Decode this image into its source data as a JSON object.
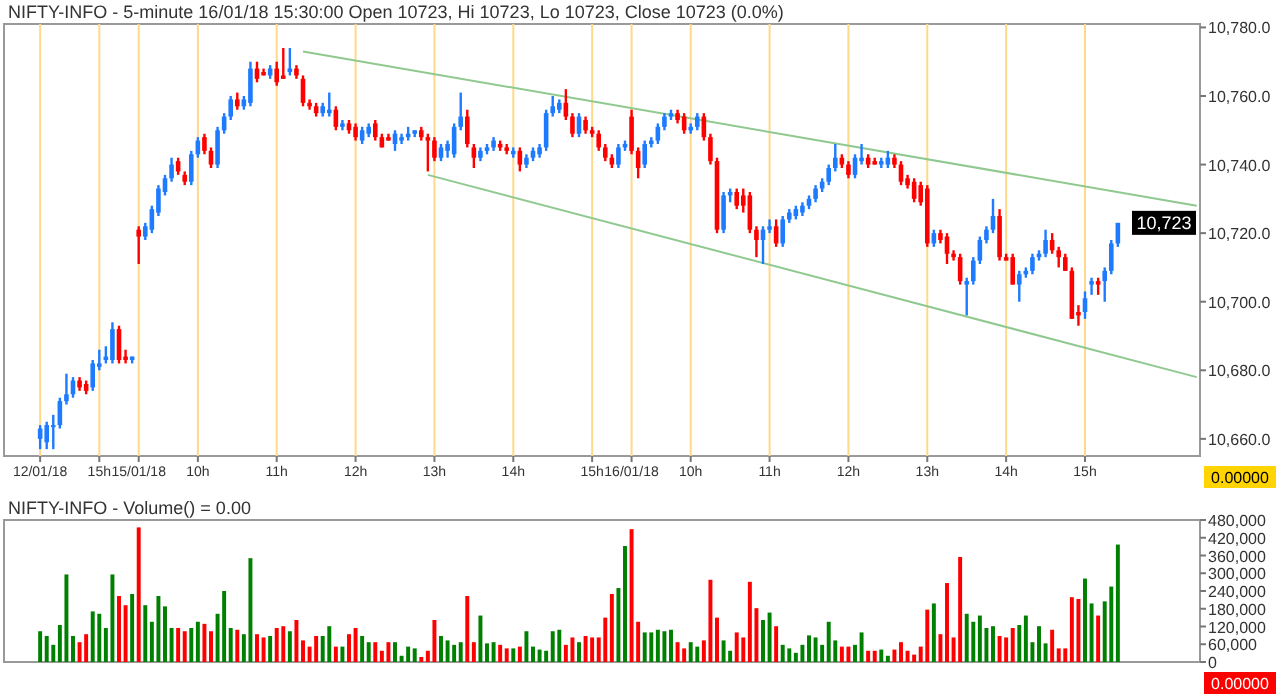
{
  "chart_data": [
    {
      "type": "candlestick",
      "title": "NIFTY-INFO - 5-minute 16/01/18 15:30:00 Open 10723, Hi 10723, Lo 10723, Close 10723 (0.0%)",
      "categories": [
        null,
        null,
        null,
        null,
        null,
        "12/01/18",
        null,
        null,
        null,
        null,
        null,
        null,
        null,
        null,
        "15h",
        null,
        null,
        null,
        null,
        null,
        "15/01/18",
        null,
        null,
        null,
        null,
        null,
        null,
        null,
        null,
        "10h",
        null,
        null,
        null,
        null,
        null,
        null,
        null,
        null,
        null,
        null,
        null,
        "11h",
        null,
        null,
        null,
        null,
        null,
        null,
        null,
        null,
        null,
        null,
        null,
        "12h",
        null,
        null,
        null,
        null,
        null,
        null,
        null,
        null,
        null,
        null,
        null,
        "13h",
        null,
        null,
        null,
        null,
        null,
        null,
        null,
        null,
        null,
        null,
        null,
        "14h",
        null,
        null,
        null,
        null,
        null,
        null,
        null,
        null,
        null,
        null,
        null,
        "15h",
        null,
        null,
        null,
        null,
        null,
        "16/01/18",
        null,
        null,
        null,
        null,
        null,
        null,
        null,
        null,
        "10h",
        null,
        null,
        null,
        null,
        null,
        null,
        null,
        null,
        null,
        null,
        null,
        "11h",
        null,
        null,
        null,
        null,
        null,
        null,
        null,
        null,
        null,
        null,
        null,
        "12h",
        null,
        null,
        null,
        null,
        null,
        null,
        null,
        null,
        null,
        null,
        null,
        "13h",
        null,
        null,
        null,
        null,
        null,
        null,
        null,
        null,
        null,
        null,
        null,
        "14h",
        null,
        null,
        null,
        null,
        null,
        null,
        null,
        null,
        null,
        null,
        null,
        "15h",
        null,
        null,
        null,
        null,
        null,
        null,
        null,
        null,
        null,
        null,
        null,
        null,
        null,
        null,
        null,
        null,
        null
      ],
      "ohlc": [
        null,
        null,
        null,
        null,
        null,
        [
          10660,
          10664,
          10657,
          10663
        ],
        [
          10659,
          10665,
          10657,
          10664
        ],
        [
          10664,
          10667,
          10657,
          10664
        ],
        [
          10664,
          10672,
          10663,
          10671
        ],
        [
          10671,
          10679,
          10670,
          10673
        ],
        [
          10673,
          10678,
          10672,
          10677
        ],
        [
          10677,
          10678,
          10674,
          10675
        ],
        [
          10676,
          10677,
          10673,
          10674
        ],
        [
          10675,
          10683,
          10674,
          10682
        ],
        [
          10681,
          10686,
          10680,
          10682
        ],
        [
          10683,
          10687,
          10682,
          10684
        ],
        [
          10683,
          10694,
          10682,
          10692
        ],
        [
          10692,
          10693,
          10682,
          10683
        ],
        [
          10684,
          10686,
          10682,
          10683
        ],
        [
          10683,
          10684,
          10682,
          10684
        ],
        [
          10721,
          10722,
          10711,
          10719
        ],
        [
          10719,
          10723,
          10718,
          10722
        ],
        [
          10721,
          10728,
          10720,
          10727
        ],
        [
          10726,
          10734,
          10725,
          10733
        ],
        [
          10732,
          10737,
          10731,
          10736
        ],
        [
          10736,
          10742,
          10735,
          10740
        ],
        [
          10741,
          10742,
          10737,
          10738
        ],
        [
          10737,
          10738,
          10734,
          10735
        ],
        [
          10735,
          10744,
          10734,
          10743
        ],
        [
          10743,
          10748,
          10742,
          10747
        ],
        [
          10748,
          10749,
          10743,
          10744
        ],
        [
          10744,
          10745,
          10739,
          10740
        ],
        [
          10740,
          10751,
          10739,
          10750
        ],
        [
          10750,
          10755,
          10749,
          10754
        ],
        [
          10754,
          10760,
          10753,
          10759
        ],
        [
          10759,
          10761,
          10756,
          10757
        ],
        [
          10757,
          10760,
          10756,
          10759
        ],
        [
          10758,
          10770,
          10757,
          10768
        ],
        [
          10768,
          10770,
          10764,
          10765
        ],
        [
          10767,
          10768,
          10766,
          10766
        ],
        [
          10766,
          10769,
          10765,
          10768
        ],
        [
          10768,
          10770,
          10763,
          10764
        ],
        [
          10766,
          10774,
          10765,
          10765
        ],
        [
          10767,
          10774,
          10766,
          10768
        ],
        [
          10768,
          10769,
          10765,
          10766
        ],
        [
          10765,
          10766,
          10757,
          10758
        ],
        [
          10758,
          10759,
          10756,
          10757
        ],
        [
          10757,
          10758,
          10754,
          10755
        ],
        [
          10755,
          10758,
          10754,
          10757
        ],
        [
          10755,
          10761,
          10754,
          10756
        ],
        [
          10756,
          10757,
          10750,
          10751
        ],
        [
          10751,
          10753,
          10750,
          10752
        ],
        [
          10752,
          10753,
          10749,
          10750
        ],
        [
          10751,
          10752,
          10747,
          10748
        ],
        [
          10747,
          10751,
          10746,
          10750
        ],
        [
          10749,
          10752,
          10748,
          10751
        ],
        [
          10752,
          10753,
          10747,
          10748
        ],
        [
          10748,
          10749,
          10745,
          10745
        ],
        [
          10748,
          10749,
          10747,
          10747
        ],
        [
          10746,
          10750,
          10744,
          10749
        ],
        [
          10747,
          10749,
          10746,
          10748
        ],
        [
          10748,
          10751,
          10747,
          10749
        ],
        [
          10749,
          10750,
          10748,
          10750
        ],
        [
          10750,
          10751,
          10747,
          10748
        ],
        [
          10748,
          10749,
          10738,
          10747
        ],
        [
          10747,
          10748,
          10741,
          10742
        ],
        [
          10742,
          10746,
          10741,
          10745
        ],
        [
          10744,
          10747,
          10742,
          10746
        ],
        [
          10743,
          10752,
          10742,
          10751
        ],
        [
          10751,
          10761,
          10750,
          10754
        ],
        [
          10754,
          10756,
          10745,
          10746
        ],
        [
          10745,
          10746,
          10739,
          10742
        ],
        [
          10742,
          10745,
          10741,
          10744
        ],
        [
          10744,
          10746,
          10743,
          10745
        ],
        [
          10745,
          10748,
          10744,
          10747
        ],
        [
          10746,
          10747,
          10744,
          10745
        ],
        [
          10745,
          10746,
          10743,
          10744
        ],
        [
          10743,
          10745,
          10742,
          10744
        ],
        [
          10744,
          10745,
          10738,
          10740
        ],
        [
          10740,
          10743,
          10739,
          10742
        ],
        [
          10742,
          10745,
          10741,
          10744
        ],
        [
          10743,
          10746,
          10742,
          10745
        ],
        [
          10745,
          10756,
          10744,
          10755
        ],
        [
          10755,
          10760,
          10754,
          10757
        ],
        [
          10756,
          10759,
          10755,
          10758
        ],
        [
          10758,
          10762,
          10753,
          10754
        ],
        [
          10754,
          10755,
          10748,
          10749
        ],
        [
          10749,
          10755,
          10748,
          10754
        ],
        [
          10753,
          10754,
          10749,
          10750
        ],
        [
          10750,
          10751,
          10748,
          10749
        ],
        [
          10749,
          10750,
          10744,
          10745
        ],
        [
          10745,
          10746,
          10741,
          10742
        ],
        [
          10742,
          10743,
          10739,
          10740
        ],
        [
          10740,
          10746,
          10739,
          10745
        ],
        [
          10745,
          10747,
          10744,
          10746
        ],
        [
          10754,
          10756,
          10743,
          10744
        ],
        [
          10744,
          10745,
          10736,
          10739
        ],
        [
          10740,
          10747,
          10739,
          10746
        ],
        [
          10746,
          10748,
          10745,
          10747
        ],
        [
          10747,
          10752,
          10746,
          10751
        ],
        [
          10751,
          10755,
          10750,
          10754
        ],
        [
          10754,
          10756,
          10753,
          10755
        ],
        [
          10755,
          10756,
          10752,
          10753
        ],
        [
          10754,
          10755,
          10749,
          10750
        ],
        [
          10750,
          10752,
          10749,
          10751
        ],
        [
          10751,
          10755,
          10750,
          10754
        ],
        [
          10754,
          10755,
          10747,
          10748
        ],
        [
          10748,
          10749,
          10740,
          10741
        ],
        [
          10741,
          10742,
          10720,
          10721
        ],
        [
          10721,
          10732,
          10720,
          10731
        ],
        [
          10731,
          10733,
          10729,
          10732
        ],
        [
          10732,
          10733,
          10727,
          10728
        ],
        [
          10731,
          10733,
          10726,
          10728
        ],
        [
          10731,
          10732,
          10720,
          10721
        ],
        [
          10721,
          10722,
          10713,
          10718
        ],
        [
          10718,
          10722,
          10711,
          10721
        ],
        [
          10721,
          10724,
          10720,
          10722
        ],
        [
          10722,
          10724,
          10716,
          10717
        ],
        [
          10717,
          10725,
          10716,
          10724
        ],
        [
          10724,
          10727,
          10723,
          10726
        ],
        [
          10725,
          10728,
          10724,
          10727
        ],
        [
          10726,
          10729,
          10725,
          10728
        ],
        [
          10728,
          10731,
          10727,
          10730
        ],
        [
          10730,
          10734,
          10729,
          10733
        ],
        [
          10733,
          10736,
          10732,
          10735
        ],
        [
          10735,
          10740,
          10734,
          10739
        ],
        [
          10739,
          10746,
          10738,
          10742
        ],
        [
          10742,
          10743,
          10739,
          10740
        ],
        [
          10740,
          10741,
          10736,
          10737
        ],
        [
          10737,
          10743,
          10736,
          10742
        ],
        [
          10741,
          10746,
          10740,
          10742
        ],
        [
          10742,
          10743,
          10739,
          10740
        ],
        [
          10741,
          10742,
          10740,
          10740
        ],
        [
          10740,
          10742,
          10739,
          10741
        ],
        [
          10740,
          10744,
          10739,
          10742
        ],
        [
          10742,
          10743,
          10739,
          10740
        ],
        [
          10740,
          10741,
          10734,
          10735
        ],
        [
          10736,
          10737,
          10733,
          10734
        ],
        [
          10735,
          10736,
          10729,
          10730
        ],
        [
          10734,
          10735,
          10728,
          10729
        ],
        [
          10733,
          10734,
          10716,
          10717
        ],
        [
          10717,
          10721,
          10716,
          10720
        ],
        [
          10720,
          10721,
          10717,
          10718
        ],
        [
          10719,
          10720,
          10711,
          10714
        ],
        [
          10714,
          10715,
          10712,
          10713
        ],
        [
          10713,
          10714,
          10705,
          10706
        ],
        [
          10705,
          10707,
          10696,
          10706
        ],
        [
          10706,
          10713,
          10705,
          10712
        ],
        [
          10712,
          10719,
          10711,
          10718
        ],
        [
          10718,
          10722,
          10717,
          10721
        ],
        [
          10721,
          10730,
          10720,
          10725
        ],
        [
          10725,
          10727,
          10712,
          10713
        ],
        [
          10713,
          10714,
          10712,
          10712
        ],
        [
          10713,
          10714,
          10705,
          10705
        ],
        [
          10705,
          10709,
          10700,
          10708
        ],
        [
          10708,
          10710,
          10707,
          10709
        ],
        [
          10709,
          10714,
          10708,
          10713
        ],
        [
          10713,
          10715,
          10712,
          10714
        ],
        [
          10714,
          10721,
          10713,
          10718
        ],
        [
          10718,
          10720,
          10714,
          10715
        ],
        [
          10715,
          10716,
          10710,
          10713
        ],
        [
          10713,
          10714,
          10709,
          10709
        ],
        [
          10709,
          10710,
          10695,
          10695
        ],
        [
          10697,
          10699,
          10693,
          10696
        ],
        [
          10697,
          10703,
          10695,
          10701
        ],
        [
          10705,
          10707,
          10702,
          10706
        ],
        [
          10706,
          10707,
          10702,
          10705
        ],
        [
          10706,
          10710,
          10700,
          10709
        ],
        [
          10709,
          10718,
          10708,
          10717
        ],
        [
          10717,
          10723,
          10716,
          10723
        ],
        null,
        null,
        null,
        null,
        null,
        null,
        null,
        null,
        null,
        null,
        null,
        null
      ],
      "series": [
        {
          "type": "line",
          "color": "#8fc98f",
          "values": [
            null,
            null,
            null,
            null,
            null,
            null,
            null,
            null,
            null,
            null,
            null,
            null,
            null,
            null,
            null,
            null,
            null,
            null,
            null,
            null,
            null,
            null,
            null,
            null,
            null,
            null,
            null,
            null,
            null,
            null,
            null,
            null,
            null,
            null,
            null,
            null,
            null,
            null,
            null,
            null,
            null,
            null,
            null,
            null,
            null,
            10773,
            null,
            null,
            null,
            null,
            null,
            null,
            null,
            null,
            null,
            null,
            null,
            null,
            null,
            null,
            null,
            null,
            null,
            null,
            null,
            null,
            null,
            null,
            null,
            null,
            null,
            null,
            null,
            null,
            null,
            null,
            null,
            null,
            null,
            null,
            null,
            null,
            null,
            null,
            null,
            null,
            null,
            null,
            null,
            null,
            null,
            null,
            null,
            null,
            null,
            null,
            null,
            null,
            null,
            null,
            null,
            null,
            null,
            null,
            null,
            null,
            null,
            null,
            null,
            null,
            null,
            null,
            null,
            null,
            null,
            null,
            null,
            null,
            null,
            null,
            null,
            null,
            null,
            null,
            null,
            null,
            null,
            null,
            null,
            null,
            null,
            null,
            null,
            null,
            null,
            null,
            null,
            null,
            null,
            null,
            null,
            null,
            null,
            null,
            null,
            null,
            null,
            null,
            null,
            null,
            null,
            null,
            null,
            null,
            null,
            null,
            null,
            null,
            null,
            null,
            null,
            null,
            null,
            null,
            null,
            null,
            null,
            null,
            null,
            null,
            null,
            null,
            null,
            null,
            null,
            null,
            null,
            null,
            null,
            null,
            null,
            10728
          ]
        },
        {
          "type": "line",
          "color": "#8fc98f",
          "values": [
            null,
            null,
            null,
            null,
            null,
            null,
            null,
            null,
            null,
            null,
            null,
            null,
            null,
            null,
            null,
            null,
            null,
            null,
            null,
            null,
            null,
            null,
            null,
            null,
            null,
            null,
            null,
            null,
            null,
            null,
            null,
            null,
            null,
            null,
            null,
            null,
            null,
            null,
            null,
            null,
            null,
            null,
            null,
            null,
            null,
            null,
            null,
            null,
            null,
            null,
            null,
            null,
            null,
            null,
            null,
            null,
            null,
            null,
            null,
            null,
            null,
            null,
            null,
            null,
            10737,
            null,
            null,
            null,
            null,
            null,
            null,
            null,
            null,
            null,
            null,
            null,
            null,
            null,
            null,
            null,
            null,
            null,
            null,
            null,
            null,
            null,
            null,
            null,
            null,
            null,
            null,
            null,
            null,
            null,
            null,
            null,
            null,
            null,
            null,
            null,
            null,
            null,
            null,
            null,
            null,
            null,
            null,
            null,
            null,
            null,
            null,
            null,
            null,
            null,
            null,
            null,
            null,
            null,
            null,
            null,
            null,
            null,
            null,
            null,
            null,
            null,
            null,
            null,
            null,
            null,
            null,
            null,
            null,
            null,
            null,
            null,
            null,
            null,
            null,
            null,
            null,
            null,
            null,
            null,
            null,
            null,
            null,
            null,
            null,
            null,
            null,
            null,
            null,
            null,
            null,
            null,
            null,
            null,
            null,
            null,
            null,
            null,
            null,
            null,
            null,
            null,
            null,
            null,
            null,
            null,
            null,
            null,
            null,
            null,
            null,
            null,
            null,
            null,
            null,
            null,
            null,
            10678
          ]
        }
      ],
      "ylim": [
        10655,
        10781
      ],
      "yticks": [
        {
          "value": 10660,
          "label": "10,660.0"
        },
        {
          "value": 10680,
          "label": "10,680.0"
        },
        {
          "value": 10700,
          "label": "10,700.0"
        },
        {
          "value": 10720,
          "label": "10,720.0"
        },
        {
          "value": 10740,
          "label": "10,740.0"
        },
        {
          "value": 10760,
          "label": "10,760.0"
        },
        {
          "value": 10780,
          "label": "10,780.0"
        }
      ],
      "grid": "x",
      "annotations": [
        {
          "text": "10,723",
          "y": 10723
        },
        "0.00000"
      ]
    },
    {
      "type": "bar",
      "title": "NIFTY-INFO - Volume() = 0.00",
      "categories": [
        null,
        null,
        null,
        null,
        null,
        null,
        null,
        null,
        null,
        null,
        null,
        null,
        null,
        null,
        null,
        null,
        null,
        null,
        null,
        null,
        null,
        null,
        null,
        null,
        null,
        null,
        null,
        null,
        null,
        null,
        null,
        null,
        null,
        null,
        null,
        null,
        null,
        null,
        null,
        null,
        null,
        null,
        null,
        null,
        null,
        null,
        null,
        null,
        null,
        null,
        null,
        null,
        null,
        null,
        null,
        null,
        null,
        null,
        null,
        null,
        null,
        null,
        null,
        null,
        null,
        null,
        null,
        null,
        null,
        null,
        null,
        null,
        null,
        null,
        null,
        null,
        null,
        null,
        null,
        null,
        null,
        null,
        null,
        null,
        null,
        null,
        null,
        null,
        null,
        null,
        null,
        null,
        null,
        null,
        null,
        null,
        null,
        null,
        null,
        null,
        null,
        null,
        null,
        null,
        null,
        null,
        null,
        null,
        null,
        null,
        null,
        null,
        null,
        null,
        null,
        null,
        null,
        null,
        null,
        null,
        null,
        null,
        null,
        null,
        null,
        null,
        null,
        null,
        null,
        null,
        null,
        null,
        null,
        null,
        null,
        null,
        null,
        null,
        null,
        null,
        null,
        null,
        null,
        null,
        null,
        null,
        null,
        null,
        null,
        null,
        null,
        null,
        null,
        null,
        null,
        null,
        null,
        null,
        null,
        null,
        null,
        null,
        null,
        null,
        null,
        null,
        null,
        null,
        null,
        null,
        null,
        null,
        null,
        null,
        null,
        null,
        null,
        null,
        null,
        null,
        null,
        null
      ],
      "values": [
        null,
        null,
        null,
        null,
        null,
        104000,
        88000,
        58000,
        125000,
        296000,
        88000,
        67000,
        94000,
        171000,
        163000,
        115000,
        296000,
        223000,
        192000,
        230000,
        455000,
        192000,
        136000,
        223000,
        188000,
        115000,
        115000,
        104000,
        115000,
        136000,
        129000,
        104000,
        163000,
        240000,
        115000,
        109000,
        94000,
        351000,
        94000,
        83000,
        88000,
        115000,
        121000,
        104000,
        142000,
        73000,
        52000,
        88000,
        88000,
        121000,
        52000,
        52000,
        94000,
        115000,
        88000,
        67000,
        67000,
        38000,
        67000,
        67000,
        21000,
        52000,
        46000,
        17000,
        38000,
        142000,
        88000,
        73000,
        58000,
        67000,
        223000,
        67000,
        157000,
        63000,
        67000,
        58000,
        46000,
        46000,
        52000,
        104000,
        52000,
        42000,
        38000,
        104000,
        109000,
        58000,
        83000,
        67000,
        88000,
        83000,
        83000,
        150000,
        230000,
        250000,
        392000,
        449000,
        136000,
        100000,
        100000,
        109000,
        104000,
        109000,
        67000,
        46000,
        67000,
        52000,
        73000,
        278000,
        150000,
        73000,
        38000,
        100000,
        83000,
        271000,
        182000,
        142000,
        167000,
        121000,
        58000,
        46000,
        31000,
        58000,
        90000,
        83000,
        58000,
        136000,
        73000,
        52000,
        52000,
        58000,
        100000,
        38000,
        38000,
        42000,
        21000,
        42000,
        67000,
        38000,
        25000,
        52000,
        177000,
        198000,
        94000,
        267000,
        83000,
        355000,
        163000,
        136000,
        157000,
        115000,
        121000,
        88000,
        83000,
        115000,
        125000,
        157000,
        67000,
        121000,
        63000,
        109000,
        46000,
        46000,
        219000,
        213000,
        282000,
        198000,
        157000,
        205000,
        255000,
        397000,
        null,
        null,
        null,
        null,
        null,
        null,
        null,
        null,
        null,
        null,
        null,
        null
      ],
      "colors": [
        null,
        null,
        null,
        null,
        null,
        "#008000",
        "#008000",
        "#008000",
        "#008000",
        "#008000",
        "#008000",
        "#ff0000",
        "#ff0000",
        "#008000",
        "#008000",
        "#008000",
        "#008000",
        "#ff0000",
        "#ff0000",
        "#008000",
        "#ff0000",
        "#008000",
        "#008000",
        "#008000",
        "#008000",
        "#008000",
        "#ff0000",
        "#ff0000",
        "#008000",
        "#008000",
        "#ff0000",
        "#ff0000",
        "#008000",
        "#008000",
        "#008000",
        "#ff0000",
        "#008000",
        "#008000",
        "#ff0000",
        "#ff0000",
        "#008000",
        "#ff0000",
        "#ff0000",
        "#008000",
        "#ff0000",
        "#ff0000",
        "#ff0000",
        "#ff0000",
        "#008000",
        "#008000",
        "#ff0000",
        "#008000",
        "#ff0000",
        "#ff0000",
        "#008000",
        "#008000",
        "#ff0000",
        "#ff0000",
        "#ff0000",
        "#008000",
        "#008000",
        "#008000",
        "#008000",
        "#ff0000",
        "#ff0000",
        "#ff0000",
        "#008000",
        "#008000",
        "#008000",
        "#008000",
        "#ff0000",
        "#ff0000",
        "#008000",
        "#008000",
        "#008000",
        "#ff0000",
        "#ff0000",
        "#008000",
        "#ff0000",
        "#008000",
        "#008000",
        "#008000",
        "#008000",
        "#008000",
        "#008000",
        "#ff0000",
        "#ff0000",
        "#008000",
        "#ff0000",
        "#ff0000",
        "#ff0000",
        "#ff0000",
        "#ff0000",
        "#008000",
        "#008000",
        "#ff0000",
        "#ff0000",
        "#008000",
        "#008000",
        "#008000",
        "#008000",
        "#008000",
        "#ff0000",
        "#ff0000",
        "#008000",
        "#008000",
        "#ff0000",
        "#ff0000",
        "#ff0000",
        "#008000",
        "#008000",
        "#ff0000",
        "#ff0000",
        "#ff0000",
        "#ff0000",
        "#008000",
        "#008000",
        "#ff0000",
        "#008000",
        "#008000",
        "#008000",
        "#008000",
        "#008000",
        "#008000",
        "#008000",
        "#008000",
        "#008000",
        "#ff0000",
        "#ff0000",
        "#008000",
        "#008000",
        "#ff0000",
        "#ff0000",
        "#008000",
        "#008000",
        "#ff0000",
        "#ff0000",
        "#ff0000",
        "#ff0000",
        "#ff0000",
        "#ff0000",
        "#008000",
        "#ff0000",
        "#ff0000",
        "#ff0000",
        "#ff0000",
        "#008000",
        "#008000",
        "#008000",
        "#008000",
        "#008000",
        "#ff0000",
        "#ff0000",
        "#ff0000",
        "#008000",
        "#008000",
        "#008000",
        "#008000",
        "#008000",
        "#ff0000",
        "#ff0000",
        "#ff0000",
        "#ff0000",
        "#ff0000",
        "#008000",
        "#008000",
        "#ff0000",
        "#008000",
        "#008000",
        "#008000",
        null,
        null,
        null,
        null,
        null,
        null,
        null,
        null,
        null,
        null,
        null,
        null
      ],
      "ylim": [
        0,
        480000
      ],
      "yticks": [
        {
          "value": 0,
          "label": "0"
        },
        {
          "value": 60000,
          "label": "60,000"
        },
        {
          "value": 120000,
          "label": "120,000"
        },
        {
          "value": 180000,
          "label": "180,000"
        },
        {
          "value": 240000,
          "label": "240,000"
        },
        {
          "value": 300000,
          "label": "300,000"
        },
        {
          "value": 360000,
          "label": "360,000"
        },
        {
          "value": 420000,
          "label": "420,000"
        },
        {
          "value": 480000,
          "label": "480,000"
        }
      ],
      "annotations": [
        "0.00000"
      ]
    }
  ]
}
